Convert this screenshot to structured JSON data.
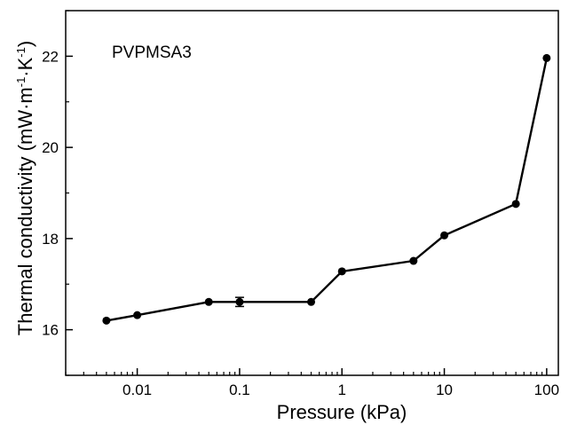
{
  "chart_data": {
    "type": "line",
    "title": "",
    "annotation": "PVPMSA3",
    "xlabel": "Pressure (kPa)",
    "ylabel": "Thermal conductivity (mW·m",
    "ylabel_sup1": "-1",
    "ylabel_mid": "·K",
    "ylabel_sup2": "-1",
    "ylabel_end": ")",
    "x_scale": "log",
    "xlim": [
      0.002,
      130
    ],
    "ylim": [
      15,
      23
    ],
    "x_ticks": [
      0.01,
      0.1,
      1,
      10,
      100
    ],
    "x_tick_labels": [
      "0.01",
      "0.1",
      "1",
      "10",
      "100"
    ],
    "y_ticks": [
      16,
      18,
      20,
      22
    ],
    "y_tick_labels": [
      "16",
      "18",
      "20",
      "22"
    ],
    "grid": false,
    "legend": "none",
    "series": [
      {
        "x": [
          0.005,
          0.01,
          0.05,
          0.1,
          0.5,
          1,
          5,
          10,
          50,
          100
        ],
        "y": [
          16.2,
          16.32,
          16.61,
          16.61,
          16.61,
          17.28,
          17.51,
          18.07,
          18.76,
          21.96
        ],
        "y_err": [
          0,
          0,
          0,
          0.1,
          0,
          0,
          0,
          0,
          0,
          0
        ],
        "color": "#000000"
      }
    ]
  }
}
